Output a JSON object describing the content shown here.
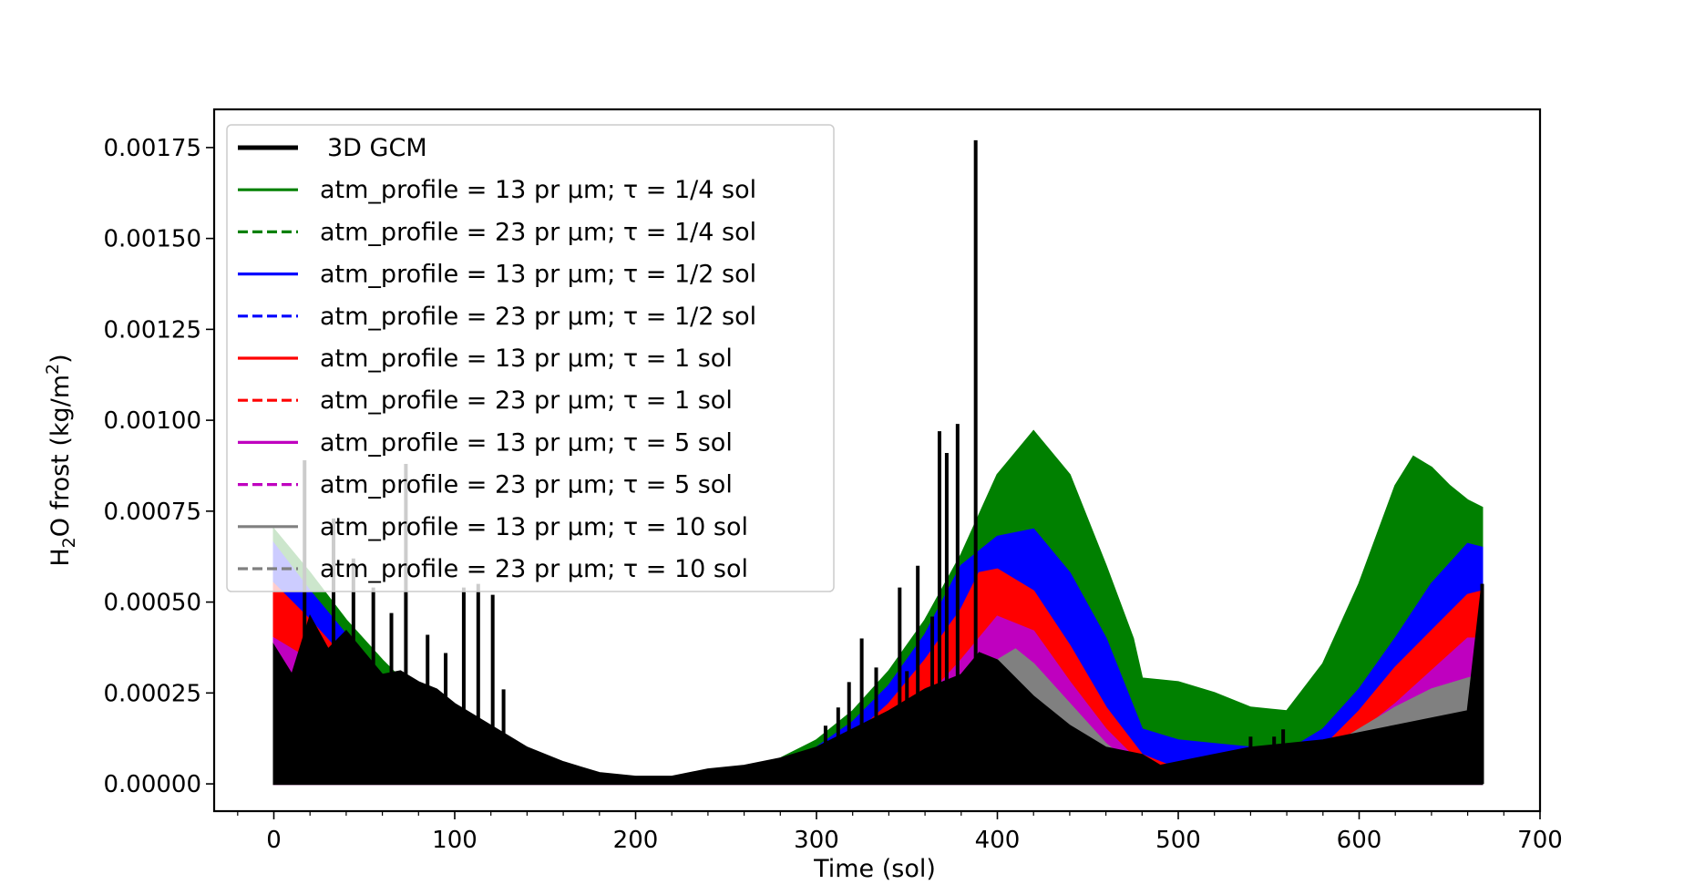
{
  "chart_data": {
    "type": "line",
    "xlabel": "Time (sol)",
    "ylabel": "H2O frost (kg/m2)",
    "ylabel_parts": {
      "a": "H",
      "sub": "2",
      "b": "O frost (kg/m",
      "sup": "2",
      "c": ")"
    },
    "xlim": [
      -33,
      700
    ],
    "ylim": [
      -7.5e-05,
      0.001855
    ],
    "x_ticks": [
      0,
      100,
      200,
      300,
      400,
      500,
      600,
      700
    ],
    "x_tick_labels": [
      "0",
      "100",
      "200",
      "300",
      "400",
      "500",
      "600",
      "700"
    ],
    "y_ticks": [
      0,
      0.00025,
      0.0005,
      0.00075,
      0.001,
      0.00125,
      0.0015,
      0.00175
    ],
    "y_tick_labels": [
      "0.00000",
      "0.00025",
      "0.00050",
      "0.00075",
      "0.00100",
      "0.00125",
      "0.00150",
      "0.00175"
    ],
    "grid": false,
    "legend_position": "upper-left",
    "series": [
      {
        "name": "3D GCM",
        "color": "#000000",
        "dash": "solid",
        "band": "spikes",
        "x": [
          0,
          10,
          20,
          30,
          40,
          50,
          60,
          70,
          80,
          90,
          100,
          110,
          120,
          130,
          140,
          160,
          180,
          200,
          220,
          240,
          260,
          280,
          300,
          320,
          340,
          360,
          380,
          390,
          400,
          420,
          440,
          460,
          480,
          490,
          500,
          520,
          540,
          560,
          580,
          600,
          620,
          640,
          660,
          668
        ],
        "low": [
          0,
          0,
          0,
          0,
          0,
          0,
          0,
          0,
          0,
          0,
          0,
          0,
          0,
          0,
          0,
          0,
          0,
          0,
          0,
          0,
          0,
          0,
          0,
          0,
          0,
          0,
          0,
          0,
          0,
          0,
          0,
          0,
          0,
          0,
          0,
          0,
          0,
          0,
          0,
          0,
          0,
          0,
          0,
          0
        ],
        "high": [
          0.00038,
          0.0003,
          0.00046,
          0.00037,
          0.00042,
          0.00036,
          0.0003,
          0.00031,
          0.00028,
          0.00026,
          0.00022,
          0.00019,
          0.00016,
          0.00013,
          0.0001,
          6e-05,
          3e-05,
          2e-05,
          2e-05,
          4e-05,
          5e-05,
          7e-05,
          0.0001,
          0.00015,
          0.0002,
          0.00026,
          0.0003,
          0.00036,
          0.00034,
          0.00024,
          0.00016,
          0.0001,
          8e-05,
          5e-05,
          6e-05,
          8e-05,
          0.0001,
          0.00011,
          0.00012,
          0.00014,
          0.00016,
          0.00018,
          0.0002,
          0.00055
        ],
        "spikes": [
          [
            17,
            0.00089
          ],
          [
            33,
            0.00073
          ],
          [
            44,
            0.00062
          ],
          [
            55,
            0.00054
          ],
          [
            65,
            0.00047
          ],
          [
            73,
            0.00088
          ],
          [
            85,
            0.00041
          ],
          [
            95,
            0.00036
          ],
          [
            105,
            0.00054
          ],
          [
            113,
            0.00055
          ],
          [
            121,
            0.00052
          ],
          [
            127,
            0.00026
          ],
          [
            305,
            0.00016
          ],
          [
            312,
            0.00021
          ],
          [
            318,
            0.00028
          ],
          [
            325,
            0.0004
          ],
          [
            333,
            0.00032
          ],
          [
            340,
            0.0002
          ],
          [
            346,
            0.00054
          ],
          [
            350,
            0.00031
          ],
          [
            356,
            0.0006
          ],
          [
            364,
            0.00046
          ],
          [
            368,
            0.00097
          ],
          [
            372,
            0.00091
          ],
          [
            378,
            0.00099
          ],
          [
            388,
            0.00177
          ],
          [
            540,
            0.00013
          ],
          [
            553,
            0.00013
          ],
          [
            558,
            0.00015
          ],
          [
            668,
            0.00055
          ]
        ]
      },
      {
        "name": "atm_profile = 13 pr μm; τ = 1/4 sol",
        "color": "#008000",
        "dash": "solid",
        "band": "fill",
        "x": [
          0,
          20,
          40,
          60,
          80,
          100,
          120,
          140,
          160,
          180,
          200,
          220,
          240,
          260,
          280,
          300,
          320,
          340,
          360,
          380,
          400,
          420,
          440,
          460,
          475,
          480,
          500,
          520,
          540,
          560,
          580,
          600,
          620,
          630,
          640,
          650,
          660,
          668
        ],
        "low": [
          0,
          0,
          0,
          0,
          0,
          0,
          0,
          0,
          0,
          0,
          0,
          0,
          0,
          0,
          0,
          0,
          0,
          0,
          0,
          0,
          0,
          0,
          0,
          0,
          0,
          0,
          0,
          0,
          0,
          0,
          0,
          0,
          0,
          0,
          0,
          0,
          0,
          0
        ],
        "high": [
          0.0007,
          0.00058,
          0.00045,
          0.00034,
          0.00024,
          0.00016,
          0.0001,
          6e-05,
          3e-05,
          2e-05,
          1e-05,
          1e-05,
          2e-05,
          4e-05,
          7e-05,
          0.00012,
          0.0002,
          0.00031,
          0.00045,
          0.00063,
          0.00085,
          0.00097,
          0.00085,
          0.0006,
          0.0004,
          0.00029,
          0.00028,
          0.00025,
          0.00021,
          0.0002,
          0.00033,
          0.00055,
          0.00082,
          0.0009,
          0.00087,
          0.00082,
          0.00078,
          0.00076
        ]
      },
      {
        "name": "atm_profile = 23 pr μm; τ = 1/4 sol",
        "color": "#008000",
        "dash": "dashed",
        "band": "none"
      },
      {
        "name": "atm_profile = 13 pr μm; τ = 1/2 sol",
        "color": "#0000ff",
        "dash": "solid",
        "band": "fill",
        "x": [
          0,
          20,
          40,
          60,
          80,
          100,
          120,
          140,
          160,
          180,
          200,
          220,
          240,
          260,
          280,
          300,
          320,
          340,
          360,
          380,
          400,
          420,
          440,
          460,
          480,
          500,
          520,
          540,
          560,
          580,
          600,
          620,
          640,
          660,
          668
        ],
        "low": [
          0,
          0,
          0,
          0,
          0,
          0,
          0,
          0,
          0,
          0,
          0,
          0,
          0,
          0,
          0,
          0,
          0,
          0,
          0,
          0,
          0,
          0,
          0,
          0,
          0,
          0,
          0,
          0,
          0,
          0,
          0,
          0,
          0,
          0,
          0
        ],
        "high": [
          0.00066,
          0.00053,
          0.00041,
          0.0003,
          0.00021,
          0.00014,
          9e-05,
          5e-05,
          3e-05,
          2e-05,
          1e-05,
          1e-05,
          2e-05,
          3e-05,
          6e-05,
          0.0001,
          0.00017,
          0.00027,
          0.00041,
          0.0006,
          0.00068,
          0.0007,
          0.00058,
          0.0004,
          0.00015,
          0.00012,
          0.00011,
          0.0001,
          9e-05,
          0.00015,
          0.00026,
          0.0004,
          0.00055,
          0.00066,
          0.00065
        ]
      },
      {
        "name": "atm_profile = 23 pr μm; τ = 1/2 sol",
        "color": "#0000ff",
        "dash": "dashed",
        "band": "none"
      },
      {
        "name": "atm_profile = 13 pr μm; τ = 1 sol",
        "color": "#ff0000",
        "dash": "solid",
        "band": "fill",
        "x": [
          0,
          20,
          40,
          60,
          80,
          100,
          120,
          140,
          160,
          180,
          200,
          220,
          240,
          260,
          280,
          300,
          320,
          340,
          360,
          380,
          390,
          400,
          420,
          440,
          460,
          480,
          500,
          520,
          540,
          560,
          580,
          600,
          620,
          640,
          660,
          668
        ],
        "low": [
          0,
          0,
          0,
          0,
          0,
          0,
          0,
          0,
          0,
          0,
          0,
          0,
          0,
          0,
          0,
          0,
          0,
          0,
          0,
          0,
          0,
          0,
          0,
          0,
          0,
          0,
          0,
          0,
          0,
          0,
          0,
          0,
          0,
          0,
          0,
          0
        ],
        "high": [
          0.00055,
          0.00045,
          0.00034,
          0.00025,
          0.00017,
          0.00011,
          7e-05,
          4e-05,
          2e-05,
          1e-05,
          1e-05,
          1e-05,
          1e-05,
          2e-05,
          4e-05,
          7e-05,
          0.00013,
          0.00022,
          0.00034,
          0.00048,
          0.00058,
          0.00059,
          0.00053,
          0.00038,
          0.00021,
          8e-05,
          4e-05,
          4e-05,
          4e-05,
          5e-05,
          0.0001,
          0.0002,
          0.00032,
          0.00042,
          0.00052,
          0.00053
        ]
      },
      {
        "name": "atm_profile = 23 pr μm; τ = 1 sol",
        "color": "#ff0000",
        "dash": "dashed",
        "band": "none"
      },
      {
        "name": "atm_profile = 13 pr μm; τ = 5 sol",
        "color": "#bf00bf",
        "dash": "solid",
        "band": "fill",
        "x": [
          0,
          20,
          40,
          60,
          80,
          100,
          120,
          140,
          160,
          180,
          200,
          220,
          240,
          260,
          280,
          300,
          320,
          340,
          360,
          380,
          400,
          420,
          440,
          460,
          480,
          500,
          520,
          540,
          560,
          580,
          600,
          620,
          640,
          660,
          668
        ],
        "low": [
          0,
          0,
          0,
          0,
          0,
          0,
          0,
          0,
          0,
          0,
          0,
          0,
          0,
          0,
          0,
          0,
          0,
          0,
          0,
          0,
          0,
          0,
          0,
          0,
          0,
          0,
          0,
          0,
          0,
          0,
          0,
          0,
          0,
          0,
          0
        ],
        "high": [
          0.0004,
          0.00034,
          0.00026,
          0.00018,
          0.00012,
          7e-05,
          4e-05,
          2e-05,
          1e-05,
          1e-05,
          0,
          0,
          1e-05,
          1e-05,
          2e-05,
          4e-05,
          8e-05,
          0.00014,
          0.00023,
          0.00034,
          0.00046,
          0.00042,
          0.00028,
          0.00015,
          5e-05,
          2e-05,
          2e-05,
          2e-05,
          3e-05,
          7e-05,
          0.00014,
          0.00022,
          0.00031,
          0.0004,
          0.0004
        ]
      },
      {
        "name": "atm_profile = 23 pr μm; τ = 5 sol",
        "color": "#bf00bf",
        "dash": "dashed",
        "band": "none"
      },
      {
        "name": "atm_profile = 13 pr μm; τ = 10 sol",
        "color": "#808080",
        "dash": "solid",
        "band": "fill",
        "x": [
          0,
          20,
          40,
          60,
          80,
          100,
          120,
          140,
          160,
          180,
          200,
          220,
          240,
          260,
          280,
          300,
          320,
          340,
          360,
          380,
          400,
          410,
          420,
          440,
          460,
          480,
          500,
          520,
          540,
          560,
          580,
          600,
          620,
          640,
          660,
          668
        ],
        "low": [
          0,
          0,
          0,
          0,
          0,
          0,
          0,
          0,
          0,
          0,
          0,
          0,
          0,
          0,
          0,
          0,
          0,
          0,
          0,
          0,
          0,
          0,
          0,
          0,
          0,
          0,
          0,
          0,
          0,
          0,
          0,
          0,
          0,
          0,
          0,
          0
        ],
        "high": [
          0.00027,
          0.00022,
          0.00016,
          0.00011,
          7e-05,
          4e-05,
          2e-05,
          1e-05,
          1e-05,
          0,
          0,
          0,
          0,
          1e-05,
          1e-05,
          2e-05,
          5e-05,
          9e-05,
          0.00016,
          0.00025,
          0.00034,
          0.00037,
          0.00033,
          0.00022,
          0.00011,
          3e-05,
          1e-05,
          1e-05,
          2e-05,
          4e-05,
          9e-05,
          0.00015,
          0.00021,
          0.00026,
          0.00029,
          0.0003
        ]
      },
      {
        "name": "atm_profile = 23 pr μm; τ = 10 sol",
        "color": "#808080",
        "dash": "dashed",
        "band": "none"
      }
    ]
  }
}
